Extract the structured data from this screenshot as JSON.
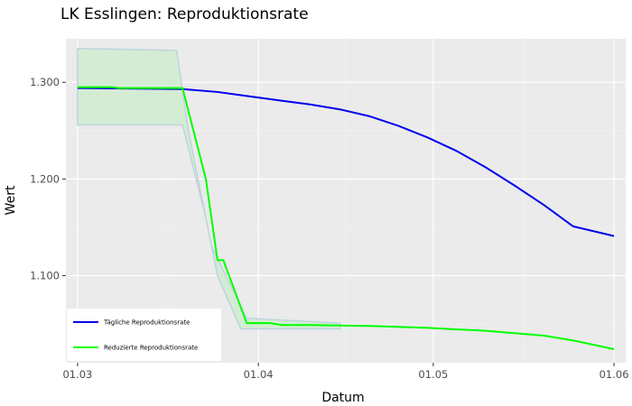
{
  "chart_data": {
    "type": "line",
    "title": "LK Esslingen: Reproduktionsrate",
    "xlabel": "Datum",
    "ylabel": "Wert",
    "x_ticks": [
      "01.03",
      "01.04",
      "01.05",
      "01.06"
    ],
    "y_ticks": [
      "1.100",
      "1.200",
      "1.300"
    ],
    "xlim": [
      "2020-02-28",
      "2020-06-03"
    ],
    "ylim": [
      1.01,
      1.345
    ],
    "grid": true,
    "legend_position": "bottom-left",
    "series": [
      {
        "name": "Tägliche Reproduktionsrate",
        "color": "#0000ee",
        "points": [
          [
            "2020-03-01",
            1.294
          ],
          [
            "2020-03-19",
            1.293
          ],
          [
            "2020-03-25",
            1.29
          ],
          [
            "2020-03-31",
            1.285
          ],
          [
            "2020-04-05",
            1.281
          ],
          [
            "2020-04-10",
            1.277
          ],
          [
            "2020-04-15",
            1.272
          ],
          [
            "2020-04-20",
            1.265
          ],
          [
            "2020-04-25",
            1.255
          ],
          [
            "2020-04-30",
            1.243
          ],
          [
            "2020-05-05",
            1.229
          ],
          [
            "2020-05-10",
            1.212
          ],
          [
            "2020-05-15",
            1.193
          ],
          [
            "2020-05-20",
            1.173
          ],
          [
            "2020-05-25",
            1.151
          ],
          [
            "2020-06-01",
            1.141
          ]
        ]
      },
      {
        "name": "Reduzierte Reproduktionsrate",
        "color": "#00ff00",
        "points": [
          [
            "2020-03-01",
            1.295
          ],
          [
            "2020-03-07",
            1.295
          ],
          [
            "2020-03-08",
            1.294
          ],
          [
            "2020-03-19",
            1.294
          ],
          [
            "2020-03-23",
            1.2
          ],
          [
            "2020-03-25",
            1.116
          ],
          [
            "2020-03-26",
            1.116
          ],
          [
            "2020-03-30",
            1.051
          ],
          [
            "2020-04-03",
            1.051
          ],
          [
            "2020-04-05",
            1.049
          ],
          [
            "2020-04-10",
            1.049
          ],
          [
            "2020-04-20",
            1.048
          ],
          [
            "2020-04-30",
            1.046
          ],
          [
            "2020-05-10",
            1.043
          ],
          [
            "2020-05-20",
            1.038
          ],
          [
            "2020-05-25",
            1.033
          ],
          [
            "2020-06-01",
            1.024
          ]
        ]
      }
    ],
    "band": {
      "color": "#d4ecd4",
      "upper": [
        [
          "2020-03-01",
          1.335
        ],
        [
          "2020-03-18",
          1.333
        ],
        [
          "2020-03-20",
          1.25
        ],
        [
          "2020-03-24",
          1.13
        ],
        [
          "2020-03-30",
          1.056
        ],
        [
          "2020-04-15",
          1.051
        ]
      ],
      "lower": [
        [
          "2020-03-01",
          1.256
        ],
        [
          "2020-03-19",
          1.256
        ],
        [
          "2020-03-23",
          1.16
        ],
        [
          "2020-03-25",
          1.1
        ],
        [
          "2020-03-29",
          1.045
        ],
        [
          "2020-04-15",
          1.045
        ]
      ]
    }
  }
}
